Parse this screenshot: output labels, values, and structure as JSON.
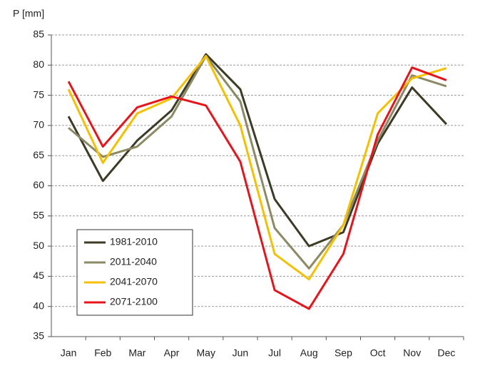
{
  "chart_data": {
    "type": "line",
    "y_label": "P [mm]",
    "categories": [
      "Jan",
      "Feb",
      "Mar",
      "Apr",
      "May",
      "Jun",
      "Jul",
      "Aug",
      "Sep",
      "Oct",
      "Nov",
      "Dec"
    ],
    "series": [
      {
        "name": "1981-2010",
        "color": "#3d3a26",
        "values": [
          71.5,
          60.8,
          67.5,
          72.5,
          81.8,
          76,
          57.8,
          50,
          52.3,
          67,
          76.3,
          70.2
        ]
      },
      {
        "name": "2011-2040",
        "color": "#8c8a64",
        "values": [
          69.6,
          64.8,
          66.5,
          71.5,
          81.5,
          74,
          53,
          46.3,
          53.5,
          67.5,
          78.3,
          76.5
        ]
      },
      {
        "name": "2041-2070",
        "color": "#f5c000",
        "values": [
          76,
          63.8,
          72,
          74.5,
          81.5,
          70,
          48.7,
          44.5,
          53.5,
          72,
          77.8,
          79.5
        ]
      },
      {
        "name": "2071-2100",
        "color": "#e8141c",
        "values": [
          77.3,
          66.5,
          73,
          74.8,
          73.3,
          64,
          42.7,
          39.6,
          48.7,
          68.5,
          79.6,
          77.5
        ]
      }
    ],
    "ylim": [
      35,
      85
    ],
    "yticks": [
      35,
      40,
      45,
      50,
      55,
      60,
      65,
      70,
      75,
      80,
      85
    ],
    "grid": true,
    "legend": "lower left"
  }
}
